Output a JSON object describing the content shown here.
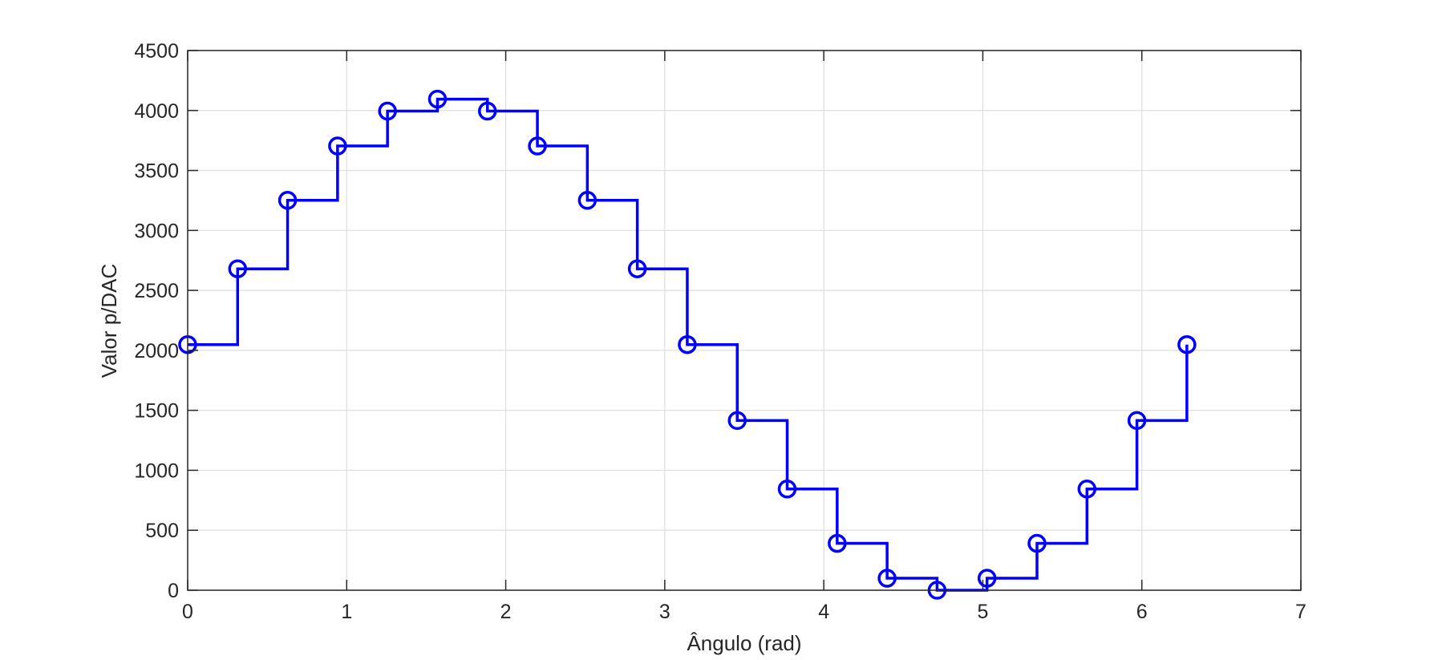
{
  "chart_data": {
    "type": "line",
    "style": "stairs",
    "xlabel": "Ângulo (rad)",
    "ylabel": "Valor p/DAC",
    "xlim": [
      0,
      7
    ],
    "ylim": [
      0,
      4500
    ],
    "xticks": [
      "0",
      "1",
      "2",
      "3",
      "4",
      "5",
      "6",
      "7"
    ],
    "yticks": [
      "0",
      "500",
      "1000",
      "1500",
      "2000",
      "2500",
      "3000",
      "3500",
      "4000",
      "4500"
    ],
    "grid": true,
    "color": "#0000ff",
    "marker": "circle",
    "series": [
      {
        "x": [
          0,
          0.3142,
          0.6283,
          0.9425,
          1.2566,
          1.5708,
          1.885,
          2.1991,
          2.5133,
          2.8274,
          3.1416,
          3.4558,
          3.7699,
          4.0841,
          4.3982,
          4.7124,
          5.0265,
          5.3407,
          5.6549,
          5.969,
          6.2832
        ],
        "values": [
          2048,
          2680,
          3251,
          3704,
          3995,
          4095,
          3995,
          3704,
          3251,
          2680,
          2048,
          1415,
          844,
          391,
          100,
          0,
          100,
          391,
          844,
          1415,
          2048
        ]
      }
    ]
  }
}
